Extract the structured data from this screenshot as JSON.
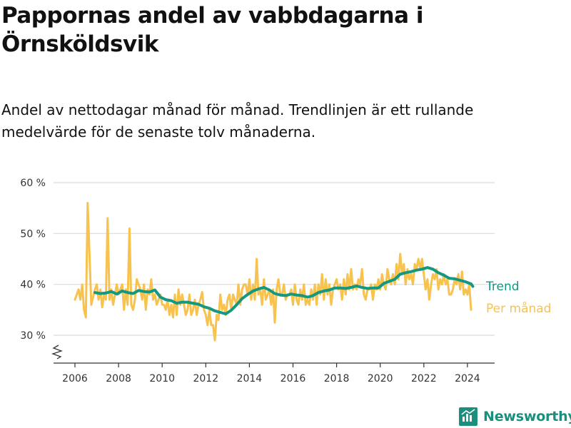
{
  "title": "Pappornas andel av vabbdagarna i Örnsköldsvik",
  "subtitle": "Andel av nettodagar månad för månad. Trendlinjen är ett rullande medelvärde för de senaste tolv månaderna.",
  "brand": {
    "name": "Newsworthy"
  },
  "colors": {
    "trend": "#16977f",
    "monthly": "#f8c24e",
    "grid": "#dcdcdc",
    "text": "#333333",
    "brand": "#1a8f7e"
  },
  "chart_data": {
    "type": "line",
    "title": "Pappornas andel av vabbdagarna i Örnsköldsvik",
    "subtitle": "Andel av nettodagar månad för månad. Trendlinjen är ett rullande medelvärde för de senaste tolv månaderna.",
    "xlabel": "",
    "ylabel": "",
    "x_ticks": [
      "2006",
      "2008",
      "2010",
      "2012",
      "2014",
      "2016",
      "2018",
      "2020",
      "2022",
      "2024"
    ],
    "y_ticks": [
      "30 %",
      "40 %",
      "50 %",
      "60 %"
    ],
    "ylim": [
      25,
      60
    ],
    "xlim": [
      "2005-06",
      "2025-01"
    ],
    "grid": true,
    "axis_break": true,
    "series": [
      {
        "name": "Per månad",
        "color": "#f8c24e",
        "points": [
          [
            "2006-01",
            37
          ],
          [
            "2006-03",
            39
          ],
          [
            "2006-04",
            37
          ],
          [
            "2006-05",
            40
          ],
          [
            "2006-06",
            35
          ],
          [
            "2006-07",
            33.5
          ],
          [
            "2006-08",
            56
          ],
          [
            "2006-10",
            36
          ],
          [
            "2006-12",
            39
          ],
          [
            "2007-01",
            40
          ],
          [
            "2007-02",
            37
          ],
          [
            "2007-03",
            39
          ],
          [
            "2007-04",
            35.5
          ],
          [
            "2007-05",
            38
          ],
          [
            "2007-06",
            37
          ],
          [
            "2007-07",
            53
          ],
          [
            "2007-08",
            37
          ],
          [
            "2007-09",
            39
          ],
          [
            "2007-10",
            36
          ],
          [
            "2007-12",
            40
          ],
          [
            "2008-01",
            38
          ],
          [
            "2008-02",
            39
          ],
          [
            "2008-03",
            40
          ],
          [
            "2008-04",
            35
          ],
          [
            "2008-05",
            39
          ],
          [
            "2008-06",
            36
          ],
          [
            "2008-07",
            51
          ],
          [
            "2008-08",
            36
          ],
          [
            "2008-09",
            35
          ],
          [
            "2008-10",
            37
          ],
          [
            "2008-11",
            41
          ],
          [
            "2008-12",
            40
          ],
          [
            "2009-01",
            39
          ],
          [
            "2009-02",
            37
          ],
          [
            "2009-03",
            40
          ],
          [
            "2009-04",
            35
          ],
          [
            "2009-05",
            39
          ],
          [
            "2009-06",
            38
          ],
          [
            "2009-07",
            41
          ],
          [
            "2009-08",
            37
          ],
          [
            "2009-09",
            38
          ],
          [
            "2009-10",
            36
          ],
          [
            "2009-11",
            37
          ],
          [
            "2009-12",
            38
          ],
          [
            "2010-01",
            36
          ],
          [
            "2010-02",
            36
          ],
          [
            "2010-03",
            35
          ],
          [
            "2010-04",
            37
          ],
          [
            "2010-05",
            34
          ],
          [
            "2010-06",
            36
          ],
          [
            "2010-07",
            33.5
          ],
          [
            "2010-08",
            38
          ],
          [
            "2010-09",
            34
          ],
          [
            "2010-10",
            39
          ],
          [
            "2010-11",
            36
          ],
          [
            "2010-12",
            38
          ],
          [
            "2011-01",
            36
          ],
          [
            "2011-02",
            34
          ],
          [
            "2011-03",
            35
          ],
          [
            "2011-04",
            38
          ],
          [
            "2011-05",
            34
          ],
          [
            "2011-06",
            35
          ],
          [
            "2011-07",
            37
          ],
          [
            "2011-08",
            34
          ],
          [
            "2011-09",
            36
          ],
          [
            "2011-10",
            37
          ],
          [
            "2011-11",
            38.5
          ],
          [
            "2011-12",
            35
          ],
          [
            "2012-01",
            34
          ],
          [
            "2012-02",
            32
          ],
          [
            "2012-03",
            35
          ],
          [
            "2012-04",
            32
          ],
          [
            "2012-05",
            32
          ],
          [
            "2012-06",
            29
          ],
          [
            "2012-07",
            34
          ],
          [
            "2012-08",
            33
          ],
          [
            "2012-09",
            38
          ],
          [
            "2012-10",
            35
          ],
          [
            "2012-11",
            36
          ],
          [
            "2012-12",
            34
          ],
          [
            "2013-01",
            37
          ],
          [
            "2013-02",
            38
          ],
          [
            "2013-03",
            35
          ],
          [
            "2013-04",
            38
          ],
          [
            "2013-05",
            37
          ],
          [
            "2013-06",
            36
          ],
          [
            "2013-07",
            40
          ],
          [
            "2013-08",
            36
          ],
          [
            "2013-09",
            39
          ],
          [
            "2013-10",
            40
          ],
          [
            "2013-11",
            40
          ],
          [
            "2013-12",
            38
          ],
          [
            "2014-01",
            41
          ],
          [
            "2014-02",
            37
          ],
          [
            "2014-03",
            40
          ],
          [
            "2014-04",
            37
          ],
          [
            "2014-05",
            45
          ],
          [
            "2014-06",
            38
          ],
          [
            "2014-07",
            39
          ],
          [
            "2014-08",
            36
          ],
          [
            "2014-09",
            41
          ],
          [
            "2014-10",
            37
          ],
          [
            "2014-11",
            38
          ],
          [
            "2014-12",
            39
          ],
          [
            "2015-01",
            36
          ],
          [
            "2015-02",
            39
          ],
          [
            "2015-03",
            32.5
          ],
          [
            "2015-04",
            39
          ],
          [
            "2015-05",
            41
          ],
          [
            "2015-06",
            38
          ],
          [
            "2015-07",
            38
          ],
          [
            "2015-08",
            40
          ],
          [
            "2015-09",
            37
          ],
          [
            "2015-10",
            38
          ],
          [
            "2015-11",
            38
          ],
          [
            "2015-12",
            39
          ],
          [
            "2016-01",
            36
          ],
          [
            "2016-02",
            40
          ],
          [
            "2016-03",
            37
          ],
          [
            "2016-04",
            36
          ],
          [
            "2016-05",
            39
          ],
          [
            "2016-06",
            37
          ],
          [
            "2016-07",
            40
          ],
          [
            "2016-08",
            36
          ],
          [
            "2016-09",
            37
          ],
          [
            "2016-10",
            36
          ],
          [
            "2016-11",
            39
          ],
          [
            "2016-12",
            37
          ],
          [
            "2017-01",
            40
          ],
          [
            "2017-02",
            36
          ],
          [
            "2017-03",
            40
          ],
          [
            "2017-04",
            38
          ],
          [
            "2017-05",
            42
          ],
          [
            "2017-06",
            37
          ],
          [
            "2017-07",
            41
          ],
          [
            "2017-08",
            38
          ],
          [
            "2017-09",
            40
          ],
          [
            "2017-10",
            36
          ],
          [
            "2017-11",
            39
          ],
          [
            "2017-12",
            40
          ],
          [
            "2018-01",
            41
          ],
          [
            "2018-02",
            39
          ],
          [
            "2018-03",
            40
          ],
          [
            "2018-04",
            37
          ],
          [
            "2018-05",
            41
          ],
          [
            "2018-06",
            38
          ],
          [
            "2018-07",
            42
          ],
          [
            "2018-08",
            39
          ],
          [
            "2018-09",
            43
          ],
          [
            "2018-10",
            39
          ],
          [
            "2018-11",
            40
          ],
          [
            "2018-12",
            39
          ],
          [
            "2019-01",
            41
          ],
          [
            "2019-02",
            40
          ],
          [
            "2019-03",
            43
          ],
          [
            "2019-04",
            38
          ],
          [
            "2019-05",
            37
          ],
          [
            "2019-06",
            39
          ],
          [
            "2019-07",
            39
          ],
          [
            "2019-08",
            40
          ],
          [
            "2019-09",
            37
          ],
          [
            "2019-10",
            40
          ],
          [
            "2019-11",
            39
          ],
          [
            "2019-12",
            41
          ],
          [
            "2020-01",
            39
          ],
          [
            "2020-02",
            42
          ],
          [
            "2020-03",
            40
          ],
          [
            "2020-04",
            39
          ],
          [
            "2020-05",
            43
          ],
          [
            "2020-06",
            41
          ],
          [
            "2020-07",
            40
          ],
          [
            "2020-08",
            42
          ],
          [
            "2020-09",
            40
          ],
          [
            "2020-10",
            44
          ],
          [
            "2020-11",
            41
          ],
          [
            "2020-12",
            46
          ],
          [
            "2021-01",
            42
          ],
          [
            "2021-02",
            44
          ],
          [
            "2021-03",
            40
          ],
          [
            "2021-04",
            43
          ],
          [
            "2021-05",
            41
          ],
          [
            "2021-06",
            42
          ],
          [
            "2021-07",
            40
          ],
          [
            "2021-08",
            44
          ],
          [
            "2021-09",
            43
          ],
          [
            "2021-10",
            45
          ],
          [
            "2021-11",
            43
          ],
          [
            "2021-12",
            45
          ],
          [
            "2022-01",
            42
          ],
          [
            "2022-02",
            39
          ],
          [
            "2022-03",
            41
          ],
          [
            "2022-04",
            37
          ],
          [
            "2022-05",
            40
          ],
          [
            "2022-06",
            42
          ],
          [
            "2022-07",
            41
          ],
          [
            "2022-08",
            43
          ],
          [
            "2022-09",
            39
          ],
          [
            "2022-10",
            41
          ],
          [
            "2022-11",
            40
          ],
          [
            "2022-12",
            42
          ],
          [
            "2023-01",
            40
          ],
          [
            "2023-02",
            41
          ],
          [
            "2023-03",
            38
          ],
          [
            "2023-04",
            38
          ],
          [
            "2023-05",
            39
          ],
          [
            "2023-06",
            41
          ],
          [
            "2023-07",
            40
          ],
          [
            "2023-08",
            42
          ],
          [
            "2023-09",
            39
          ],
          [
            "2023-10",
            42.5
          ],
          [
            "2023-11",
            38
          ],
          [
            "2023-12",
            39
          ],
          [
            "2024-01",
            38
          ],
          [
            "2024-02",
            40
          ],
          [
            "2024-03",
            35
          ]
        ]
      },
      {
        "name": "Trend",
        "color": "#16977f",
        "points": [
          [
            "2006-12",
            38.4
          ],
          [
            "2007-03",
            38.2
          ],
          [
            "2007-06",
            38.3
          ],
          [
            "2007-09",
            38.6
          ],
          [
            "2007-12",
            38.1
          ],
          [
            "2008-03",
            38.7
          ],
          [
            "2008-06",
            38.4
          ],
          [
            "2008-09",
            38.2
          ],
          [
            "2008-12",
            38.8
          ],
          [
            "2009-03",
            38.6
          ],
          [
            "2009-06",
            38.5
          ],
          [
            "2009-09",
            38.9
          ],
          [
            "2009-12",
            37.5
          ],
          [
            "2010-03",
            37.0
          ],
          [
            "2010-06",
            36.8
          ],
          [
            "2010-09",
            36.3
          ],
          [
            "2010-12",
            36.5
          ],
          [
            "2011-03",
            36.5
          ],
          [
            "2011-06",
            36.3
          ],
          [
            "2011-09",
            36.1
          ],
          [
            "2011-12",
            35.6
          ],
          [
            "2012-03",
            35.3
          ],
          [
            "2012-06",
            34.8
          ],
          [
            "2012-09",
            34.5
          ],
          [
            "2012-12",
            34.2
          ],
          [
            "2013-03",
            34.9
          ],
          [
            "2013-06",
            36.0
          ],
          [
            "2013-09",
            37.2
          ],
          [
            "2013-12",
            38.0
          ],
          [
            "2014-03",
            38.7
          ],
          [
            "2014-06",
            39.1
          ],
          [
            "2014-09",
            39.4
          ],
          [
            "2014-12",
            38.9
          ],
          [
            "2015-03",
            38.2
          ],
          [
            "2015-06",
            37.9
          ],
          [
            "2015-09",
            37.8
          ],
          [
            "2015-12",
            38.1
          ],
          [
            "2016-03",
            37.9
          ],
          [
            "2016-06",
            37.8
          ],
          [
            "2016-09",
            37.5
          ],
          [
            "2016-12",
            37.8
          ],
          [
            "2017-03",
            38.4
          ],
          [
            "2017-06",
            38.7
          ],
          [
            "2017-09",
            38.9
          ],
          [
            "2017-12",
            39.3
          ],
          [
            "2018-03",
            39.3
          ],
          [
            "2018-06",
            39.2
          ],
          [
            "2018-09",
            39.4
          ],
          [
            "2018-12",
            39.7
          ],
          [
            "2019-03",
            39.4
          ],
          [
            "2019-06",
            39.2
          ],
          [
            "2019-09",
            39.3
          ],
          [
            "2019-12",
            39.3
          ],
          [
            "2020-03",
            40.2
          ],
          [
            "2020-06",
            40.6
          ],
          [
            "2020-09",
            41.0
          ],
          [
            "2020-12",
            42.0
          ],
          [
            "2021-03",
            42.3
          ],
          [
            "2021-06",
            42.5
          ],
          [
            "2021-09",
            42.8
          ],
          [
            "2021-12",
            43.0
          ],
          [
            "2022-03",
            43.3
          ],
          [
            "2022-06",
            43.0
          ],
          [
            "2022-09",
            42.3
          ],
          [
            "2022-12",
            41.8
          ],
          [
            "2023-03",
            41.2
          ],
          [
            "2023-06",
            41.1
          ],
          [
            "2023-09",
            40.8
          ],
          [
            "2023-12",
            40.5
          ],
          [
            "2024-03",
            40.1
          ],
          [
            "2024-04",
            39.6
          ]
        ]
      }
    ],
    "legend": [
      "Trend",
      "Per månad"
    ],
    "legend_placement": "right, at line ends"
  }
}
